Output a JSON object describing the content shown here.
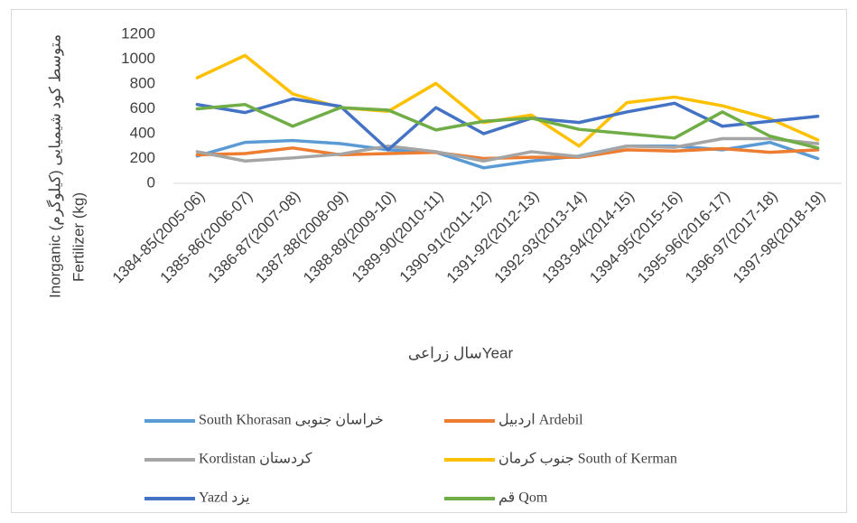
{
  "chart_data": {
    "type": "line",
    "ylabel": [
      "Inorganic متوسط کود شیمیایی (کیلوگرم)",
      "Fertilizer (kg)"
    ],
    "xlabel": "سال زراعیYear",
    "categories": [
      "1384-85(2005-06)",
      "1385-86(2006-07)",
      "1386-87(2007-08)",
      "1387-88(2008-09)",
      "1388-89(2009-10)",
      "1389-90(2010-11)",
      "1390-91(2011-12)",
      "1391-92(2012-13)",
      "1392-93(2013-14)",
      "1393-94(2014-15)",
      "1394-95(2015-16)",
      "1395-96(2016-17)",
      "1396-97(2017-18)",
      "1397-98(2018-19)"
    ],
    "series": [
      {
        "name": "South Khorasan خراسان جنوبی",
        "color": "#5b9bd5",
        "values": [
          220,
          330,
          345,
          320,
          270,
          250,
          125,
          180,
          220,
          300,
          300,
          270,
          330,
          200
        ]
      },
      {
        "name": "اردبیل Ardebil",
        "color": "#ed7d31",
        "values": [
          230,
          240,
          285,
          230,
          240,
          250,
          200,
          210,
          210,
          270,
          260,
          280,
          250,
          270
        ]
      },
      {
        "name": "Kordistan کردستان",
        "color": "#a5a5a5",
        "values": [
          255,
          180,
          205,
          235,
          300,
          255,
          180,
          255,
          215,
          300,
          290,
          360,
          360,
          320
        ]
      },
      {
        "name": "جنوب کرمان South of Kerman",
        "color": "#ffc000",
        "values": [
          850,
          1030,
          720,
          610,
          580,
          805,
          490,
          550,
          300,
          650,
          695,
          625,
          520,
          350
        ]
      },
      {
        "name": "Yazd یزد",
        "color": "#4472c4",
        "values": [
          635,
          570,
          680,
          620,
          270,
          610,
          400,
          525,
          490,
          575,
          645,
          460,
          500,
          540
        ]
      },
      {
        "name": "قم Qom",
        "color": "#70ad47",
        "values": [
          600,
          635,
          460,
          610,
          590,
          430,
          500,
          525,
          435,
          400,
          365,
          575,
          380,
          285
        ]
      }
    ],
    "ylim": [
      0,
      1200
    ],
    "yticks": [
      0,
      200,
      400,
      600,
      800,
      1000,
      1200
    ],
    "grid": false
  }
}
